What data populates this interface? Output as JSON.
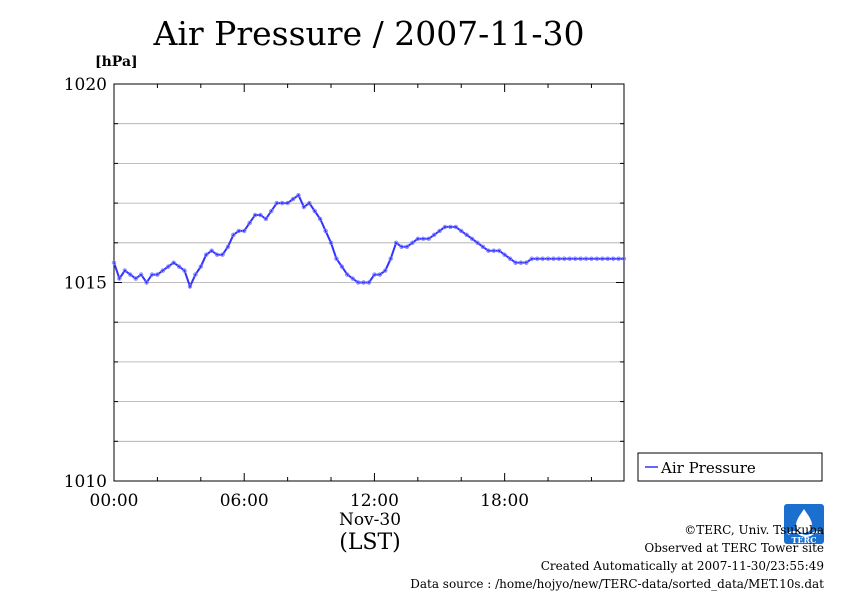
{
  "chart_data": {
    "type": "line",
    "title": "Air Pressure / 2007-11-30",
    "ylabel": "[hPa]",
    "xlabel": "Nov-30",
    "xlabel_sub": "(LST)",
    "ylim": [
      1010,
      1020
    ],
    "xlim_hours": [
      0,
      23.5
    ],
    "y_ticks": [
      1010,
      1015,
      1020
    ],
    "y_tick_labels": [
      "1010",
      "1015",
      "1020"
    ],
    "x_ticks_hours": [
      0,
      6,
      12,
      18
    ],
    "x_tick_labels": [
      "00:00",
      "06:00",
      "12:00",
      "18:00"
    ],
    "grid": true,
    "legend": "right",
    "series": [
      {
        "name": "Air Pressure",
        "color": "#3333ff",
        "x": [
          0,
          0.25,
          0.5,
          0.75,
          1.0,
          1.25,
          1.5,
          1.75,
          2.0,
          2.25,
          2.5,
          2.75,
          3.0,
          3.25,
          3.5,
          3.75,
          4.0,
          4.25,
          4.5,
          4.75,
          5.0,
          5.25,
          5.5,
          5.75,
          6.0,
          6.25,
          6.5,
          6.75,
          7.0,
          7.25,
          7.5,
          7.75,
          8.0,
          8.25,
          8.5,
          8.75,
          9.0,
          9.25,
          9.5,
          9.75,
          10.0,
          10.25,
          10.5,
          10.75,
          11.0,
          11.25,
          11.5,
          11.75,
          12.0,
          12.25,
          12.5,
          12.75,
          13.0,
          13.25,
          13.5,
          13.75,
          14.0,
          14.25,
          14.5,
          14.75,
          15.0,
          15.25,
          15.5,
          15.75,
          16.0,
          16.25,
          16.5,
          16.75,
          17.0,
          17.25,
          17.5,
          17.75,
          18.0,
          18.25,
          18.5,
          18.75,
          19.0,
          19.25,
          19.5,
          19.75,
          20.0,
          20.25,
          20.5,
          20.75,
          21.0,
          21.25,
          21.5,
          21.75,
          22.0,
          22.25,
          22.5,
          22.75,
          23.0,
          23.25,
          23.5
        ],
        "values": [
          1015.5,
          1015.1,
          1015.3,
          1015.2,
          1015.1,
          1015.2,
          1015.0,
          1015.2,
          1015.2,
          1015.3,
          1015.4,
          1015.5,
          1015.4,
          1015.3,
          1014.9,
          1015.2,
          1015.4,
          1015.7,
          1015.8,
          1015.7,
          1015.7,
          1015.9,
          1016.2,
          1016.3,
          1016.3,
          1016.5,
          1016.7,
          1016.7,
          1016.6,
          1016.8,
          1017.0,
          1017.0,
          1017.0,
          1017.1,
          1017.2,
          1016.9,
          1017.0,
          1016.8,
          1016.6,
          1016.3,
          1016.0,
          1015.6,
          1015.4,
          1015.2,
          1015.1,
          1015.0,
          1015.0,
          1015.0,
          1015.2,
          1015.2,
          1015.3,
          1015.6,
          1016.0,
          1015.9,
          1015.9,
          1016.0,
          1016.1,
          1016.1,
          1016.1,
          1016.2,
          1016.3,
          1016.4,
          1016.4,
          1016.4,
          1016.3,
          1016.2,
          1016.1,
          1016.0,
          1015.9,
          1015.8,
          1015.8,
          1015.8,
          1015.7,
          1015.6,
          1015.5,
          1015.5,
          1015.5,
          1015.6,
          1015.6,
          1015.6,
          1015.6,
          1015.6,
          1015.6,
          1015.6,
          1015.6,
          1015.6,
          1015.6,
          1015.6,
          1015.6,
          1015.6,
          1015.6,
          1015.6,
          1015.6,
          1015.6,
          1015.6
        ]
      }
    ]
  },
  "credits": {
    "line1": "©TERC, Univ. Tsukuba",
    "line2": "Observed at TERC Tower site",
    "line3": "Created Automatically at 2007-11-30/23:55:49",
    "line4": "Data source : /home/hojyo/new/TERC-data/sorted_data/MET.10s.dat"
  },
  "logo": {
    "text": "TERC",
    "icon": "terc-logo-icon",
    "color": "#1a6fcf"
  }
}
